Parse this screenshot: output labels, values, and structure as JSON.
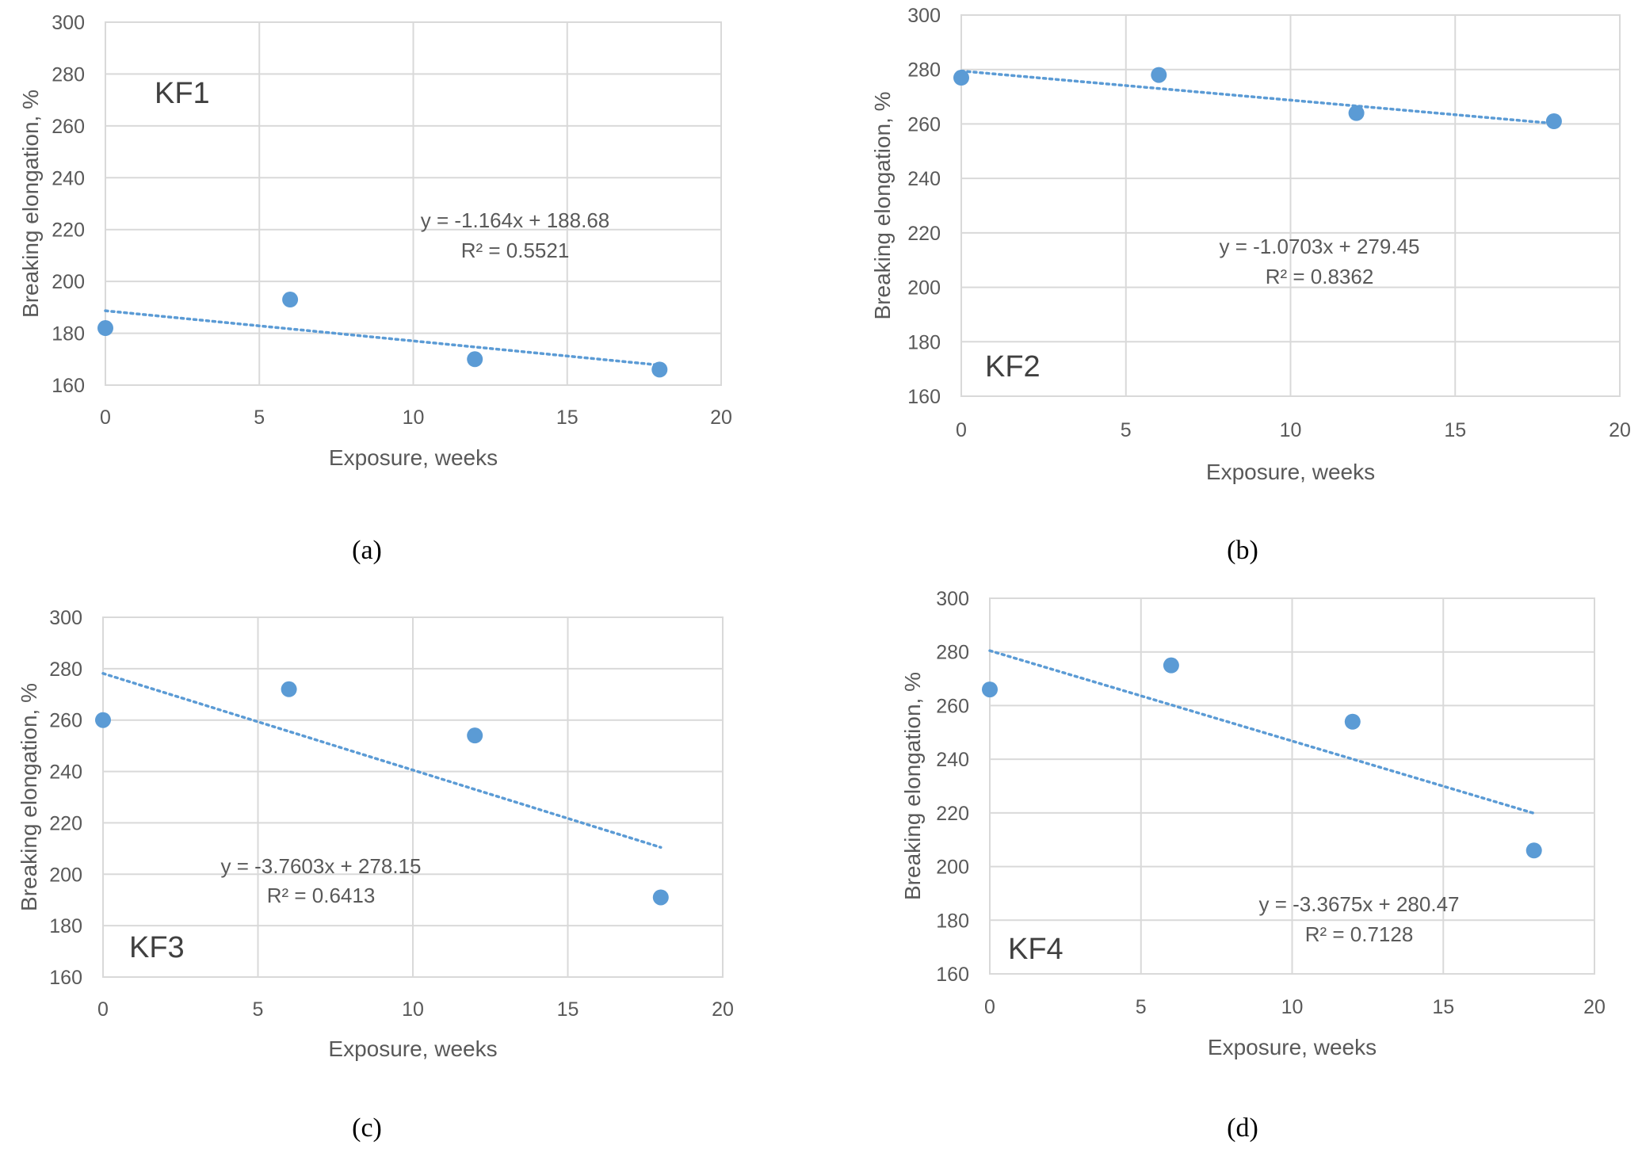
{
  "chart_data": [
    {
      "type": "scatter",
      "caption": "(a)",
      "panel_label": "KF1",
      "xlabel": "Exposure, weeks",
      "ylabel": "Breaking elongation, %",
      "xlim": [
        0,
        20
      ],
      "ylim": [
        160,
        300
      ],
      "xticks": [
        0,
        5,
        10,
        15,
        20
      ],
      "yticks": [
        160,
        180,
        200,
        220,
        240,
        260,
        280,
        300
      ],
      "grid": true,
      "x": [
        0,
        6,
        12,
        18
      ],
      "y": [
        182,
        193,
        170,
        166
      ],
      "trendline": {
        "type": "linear",
        "slope": -1.164,
        "intercept": 188.68,
        "x_range": [
          0,
          18
        ]
      },
      "equation": "y = -1.164x + 188.68",
      "r_squared": "R² = 0.5521",
      "marker_color": "#5b9bd5"
    },
    {
      "type": "scatter",
      "caption": "(b)",
      "panel_label": "KF2",
      "xlabel": "Exposure, weeks",
      "ylabel": "Breaking elongation, %",
      "xlim": [
        0,
        20
      ],
      "ylim": [
        160,
        300
      ],
      "xticks": [
        0,
        5,
        10,
        15,
        20
      ],
      "yticks": [
        160,
        180,
        200,
        220,
        240,
        260,
        280,
        300
      ],
      "grid": true,
      "x": [
        0,
        6,
        12,
        18
      ],
      "y": [
        277,
        278,
        264,
        261
      ],
      "trendline": {
        "type": "linear",
        "slope": -1.0703,
        "intercept": 279.45,
        "x_range": [
          0,
          18
        ]
      },
      "equation": "y = -1.0703x + 279.45",
      "r_squared": "R² = 0.8362",
      "marker_color": "#5b9bd5"
    },
    {
      "type": "scatter",
      "caption": "(c)",
      "panel_label": "KF3",
      "xlabel": "Exposure, weeks",
      "ylabel": "Breaking elongation, %",
      "xlim": [
        0,
        20
      ],
      "ylim": [
        160,
        300
      ],
      "xticks": [
        0,
        5,
        10,
        15,
        20
      ],
      "yticks": [
        160,
        180,
        200,
        220,
        240,
        260,
        280,
        300
      ],
      "grid": true,
      "x": [
        0,
        6,
        12,
        18
      ],
      "y": [
        260,
        272,
        254,
        191
      ],
      "trendline": {
        "type": "linear",
        "slope": -3.7603,
        "intercept": 278.15,
        "x_range": [
          0,
          18
        ]
      },
      "equation": "y = -3.7603x + 278.15",
      "r_squared": "R² = 0.6413",
      "marker_color": "#5b9bd5"
    },
    {
      "type": "scatter",
      "caption": "(d)",
      "panel_label": "KF4",
      "xlabel": "Exposure, weeks",
      "ylabel": "Breaking elongation, %",
      "xlim": [
        0,
        20
      ],
      "ylim": [
        160,
        300
      ],
      "xticks": [
        0,
        5,
        10,
        15,
        20
      ],
      "yticks": [
        160,
        180,
        200,
        220,
        240,
        260,
        280,
        300
      ],
      "grid": true,
      "x": [
        0,
        6,
        12,
        18
      ],
      "y": [
        266,
        275,
        254,
        206
      ],
      "trendline": {
        "type": "linear",
        "slope": -3.3675,
        "intercept": 280.47,
        "x_range": [
          0,
          18
        ]
      },
      "equation": "y = -3.3675x + 280.47",
      "r_squared": "R² = 0.7128",
      "marker_color": "#5b9bd5"
    }
  ]
}
